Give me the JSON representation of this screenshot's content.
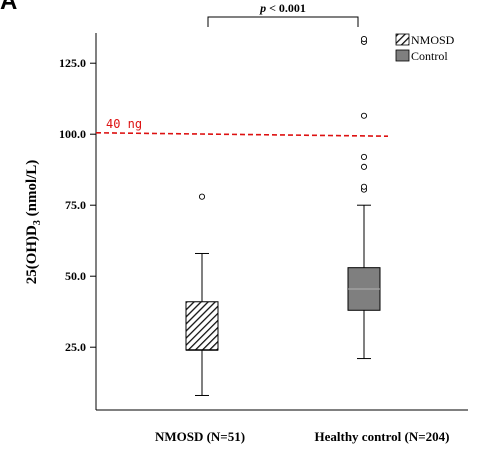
{
  "figure": {
    "panel_letter": "A"
  },
  "chart_data": {
    "type": "box",
    "title": "",
    "xlabel": "",
    "ylabel": {
      "main": "25(OH)D",
      "sub": "3",
      "units": " (nmol/L)"
    },
    "ylim": [
      0,
      137
    ],
    "yticks": [
      25.0,
      50.0,
      75.0,
      100.0,
      125.0
    ],
    "ytick_labels": [
      "25.0",
      "50.0",
      "75.0",
      "100.0",
      "125.0"
    ],
    "categories": [
      "NMOSD (N=51)",
      "Healthy control (N=204)"
    ],
    "series": [
      {
        "name": "NMOSD",
        "fill": "hatch",
        "whisker_low": 8,
        "q1": 24,
        "median": 24,
        "q3": 41,
        "whisker_high": 58,
        "outliers": [
          78
        ]
      },
      {
        "name": "Control",
        "fill": "#7f7f7f",
        "whisker_low": 21,
        "q1": 38,
        "median": 45.5,
        "q3": 53,
        "whisker_high": 75,
        "outliers": [
          80.5,
          81.5,
          88.5,
          92,
          106.5,
          132.5,
          133.5
        ]
      }
    ],
    "reference_line": {
      "label": "40 ng",
      "y_start": 100.5,
      "y_end": 99.3,
      "color": "#dd1111"
    },
    "significance": {
      "p": "p",
      "rest": " < 0.001"
    },
    "legend": {
      "position": "top-right",
      "items": [
        "NMOSD",
        "Control"
      ]
    }
  }
}
